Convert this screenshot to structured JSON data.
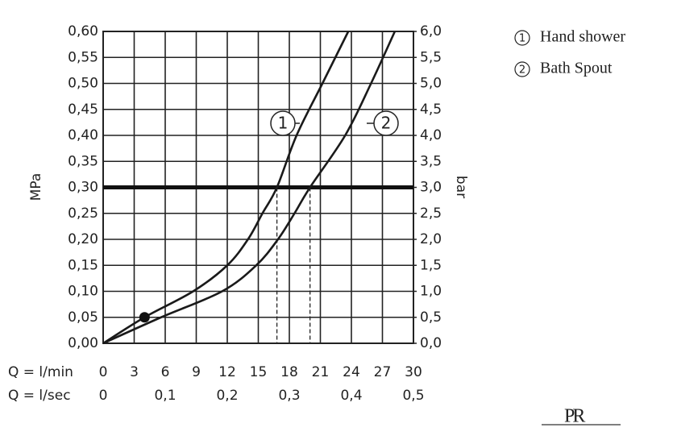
{
  "chart_data": {
    "type": "line",
    "xlabel": "Q = l/min",
    "x2label": "Q = l/sec",
    "ylabel": "MPa",
    "y2label": "bar",
    "xlim": [
      0,
      30
    ],
    "xticks": [
      0,
      3,
      6,
      9,
      12,
      15,
      18,
      21,
      24,
      27,
      30
    ],
    "x2lim": [
      0,
      0.5
    ],
    "x2ticks": [
      {
        "value": 0,
        "label": "0"
      },
      {
        "value": 0.1,
        "label": "0,1"
      },
      {
        "value": 0.2,
        "label": "0,2"
      },
      {
        "value": 0.3,
        "label": "0,3"
      },
      {
        "value": 0.4,
        "label": "0,4"
      },
      {
        "value": 0.5,
        "label": "0,5"
      }
    ],
    "ylim": [
      0,
      0.6
    ],
    "yticks": [
      {
        "value": 0,
        "label": "0,00"
      },
      {
        "value": 0.05,
        "label": "0,05"
      },
      {
        "value": 0.1,
        "label": "0,10"
      },
      {
        "value": 0.15,
        "label": "0,15"
      },
      {
        "value": 0.2,
        "label": "0,20"
      },
      {
        "value": 0.25,
        "label": "0,25"
      },
      {
        "value": 0.3,
        "label": "0,30"
      },
      {
        "value": 0.35,
        "label": "0,35"
      },
      {
        "value": 0.4,
        "label": "0,40"
      },
      {
        "value": 0.45,
        "label": "0,45"
      },
      {
        "value": 0.5,
        "label": "0,50"
      },
      {
        "value": 0.55,
        "label": "0,55"
      },
      {
        "value": 0.6,
        "label": "0,60"
      }
    ],
    "y2lim": [
      0,
      6
    ],
    "y2ticks": [
      {
        "value": 0,
        "label": "0,0"
      },
      {
        "value": 0.5,
        "label": "0,5"
      },
      {
        "value": 1,
        "label": "1,0"
      },
      {
        "value": 1.5,
        "label": "1,5"
      },
      {
        "value": 2,
        "label": "2,0"
      },
      {
        "value": 2.5,
        "label": "2,5"
      },
      {
        "value": 3,
        "label": "3,0"
      },
      {
        "value": 3.5,
        "label": "3,5"
      },
      {
        "value": 4,
        "label": "4,0"
      },
      {
        "value": 4.5,
        "label": "4,5"
      },
      {
        "value": 5,
        "label": "5,0"
      },
      {
        "value": 5.5,
        "label": "5,5"
      },
      {
        "value": 6,
        "label": "6,0"
      }
    ],
    "grid": true,
    "reference_y": 0.3,
    "reference_x": [
      16.8,
      20.0
    ],
    "marker": {
      "x": 4,
      "y": 0.05
    },
    "series": [
      {
        "name": "Hand shower",
        "label": "1",
        "color": "#1a1a1a",
        "x": [
          0,
          4,
          8.7,
          12,
          14,
          15.4,
          16.8,
          18.7,
          21.2,
          23.7
        ],
        "values": [
          0,
          0.05,
          0.1,
          0.15,
          0.2,
          0.25,
          0.3,
          0.4,
          0.5,
          0.6
        ]
      },
      {
        "name": "Bath Spout",
        "label": "2",
        "color": "#1a1a1a",
        "x": [
          0,
          5.6,
          11.5,
          14.8,
          16.9,
          18.5,
          20.0,
          23.4,
          25.9,
          28.2
        ],
        "values": [
          0,
          0.05,
          0.1,
          0.15,
          0.2,
          0.25,
          0.3,
          0.4,
          0.5,
          0.6
        ]
      }
    ],
    "logo": "PR"
  }
}
